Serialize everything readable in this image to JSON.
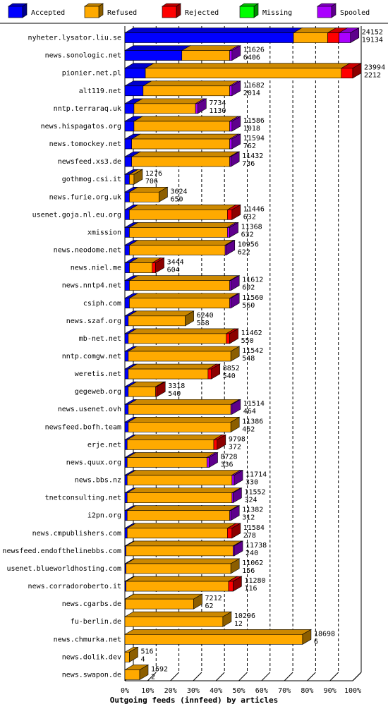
{
  "chart_data": {
    "type": "bar",
    "orientation": "horizontal",
    "stacked": true,
    "title": "",
    "xlabel": "Outgoing feeds (innfeed) by articles",
    "ylabel": "",
    "xlim": [
      0,
      100
    ],
    "x_unit": "%",
    "x_ticks": [
      "0%",
      "10%",
      "20%",
      "30%",
      "40%",
      "50%",
      "60%",
      "70%",
      "80%",
      "90%",
      "100%"
    ],
    "grid": true,
    "legend_position": "top",
    "legend": [
      {
        "name": "Accepted",
        "color": "#0000ff"
      },
      {
        "name": "Refused",
        "color": "#ffaa00"
      },
      {
        "name": "Rejected",
        "color": "#ff0000"
      },
      {
        "name": "Missing",
        "color": "#00ff00"
      },
      {
        "name": "Spooled",
        "color": "#aa00ff"
      }
    ],
    "categories": [
      {
        "host": "nyheter.lysator.liu.se",
        "offered": 24152,
        "refused": 19134,
        "segments": [
          74,
          15,
          5,
          0,
          5
        ]
      },
      {
        "host": "news.sonologic.net",
        "offered": 11626,
        "refused": 6406,
        "segments": [
          25,
          21,
          0,
          0,
          1
        ]
      },
      {
        "host": "pionier.net.pl",
        "offered": 23994,
        "refused": 2212,
        "segments": [
          9,
          86,
          5,
          0,
          0
        ]
      },
      {
        "host": "alt119.net",
        "offered": 11682,
        "refused": 2014,
        "segments": [
          8,
          38,
          0,
          0,
          1
        ]
      },
      {
        "host": "nntp.terraraq.uk",
        "offered": 7734,
        "refused": 1130,
        "segments": [
          4,
          27,
          0,
          0,
          1
        ]
      },
      {
        "host": "news.hispagatos.org",
        "offered": 11586,
        "refused": 1018,
        "segments": [
          4,
          42,
          0,
          0,
          1
        ]
      },
      {
        "host": "news.tomockey.net",
        "offered": 11594,
        "refused": 762,
        "segments": [
          3,
          43,
          0,
          0,
          1
        ]
      },
      {
        "host": "newsfeed.xs3.de",
        "offered": 11432,
        "refused": 736,
        "segments": [
          3,
          43,
          0,
          0,
          0.5
        ]
      },
      {
        "host": "gothmog.csi.it",
        "offered": 1276,
        "refused": 706,
        "segments": [
          2,
          2,
          0,
          0,
          0
        ]
      },
      {
        "host": "news.furie.org.uk",
        "offered": 3624,
        "refused": 650,
        "segments": [
          2,
          13,
          0,
          0,
          0
        ]
      },
      {
        "host": "usenet.goja.nl.eu.org",
        "offered": 11446,
        "refused": 632,
        "segments": [
          2,
          43,
          2,
          0,
          0
        ]
      },
      {
        "host": "xmission",
        "offered": 11368,
        "refused": 632,
        "segments": [
          2,
          43,
          0,
          0,
          1
        ]
      },
      {
        "host": "news.neodome.net",
        "offered": 10956,
        "refused": 622,
        "segments": [
          2,
          42,
          0,
          0,
          0.5
        ]
      },
      {
        "host": "news.niel.me",
        "offered": 3444,
        "refused": 604,
        "segments": [
          2,
          10,
          1.5,
          0,
          0
        ]
      },
      {
        "host": "news.nntp4.net",
        "offered": 11612,
        "refused": 602,
        "segments": [
          2,
          44,
          0,
          0,
          0.5
        ]
      },
      {
        "host": "csiph.com",
        "offered": 11560,
        "refused": 560,
        "segments": [
          2,
          44,
          0,
          0,
          0.5
        ]
      },
      {
        "host": "news.szaf.org",
        "offered": 6240,
        "refused": 558,
        "segments": [
          1.5,
          25,
          0,
          0,
          0
        ]
      },
      {
        "host": "mb-net.net",
        "offered": 11462,
        "refused": 550,
        "segments": [
          1.5,
          43,
          1.5,
          0,
          0
        ]
      },
      {
        "host": "nntp.comgw.net",
        "offered": 11542,
        "refused": 548,
        "segments": [
          1.5,
          45,
          0,
          0,
          0
        ]
      },
      {
        "host": "weretis.net",
        "offered": 8852,
        "refused": 540,
        "segments": [
          1.5,
          35,
          1.5,
          0,
          0
        ]
      },
      {
        "host": "gegeweb.org",
        "offered": 3318,
        "refused": 540,
        "segments": [
          1.5,
          12,
          0.5,
          0,
          0
        ]
      },
      {
        "host": "news.usenet.ovh",
        "offered": 11514,
        "refused": 464,
        "segments": [
          1.5,
          45,
          0,
          0,
          0.5
        ]
      },
      {
        "host": "newsfeed.bofh.team",
        "offered": 11386,
        "refused": 462,
        "segments": [
          1.5,
          45,
          0,
          0,
          0
        ]
      },
      {
        "host": "erje.net",
        "offered": 9798,
        "refused": 372,
        "segments": [
          1,
          38,
          1.5,
          0,
          0
        ]
      },
      {
        "host": "news.quux.org",
        "offered": 8728,
        "refused": 336,
        "segments": [
          1,
          35,
          0,
          0,
          1
        ]
      },
      {
        "host": "news.bbs.nz",
        "offered": 11714,
        "refused": 330,
        "segments": [
          1,
          46,
          0,
          0,
          1
        ]
      },
      {
        "host": "tnetconsulting.net",
        "offered": 11552,
        "refused": 324,
        "segments": [
          1,
          46,
          0,
          0,
          0.5
        ]
      },
      {
        "host": "i2pn.org",
        "offered": 11382,
        "refused": 312,
        "segments": [
          1,
          45,
          0,
          0,
          0.5
        ]
      },
      {
        "host": "news.cmpublishers.com",
        "offered": 11584,
        "refused": 278,
        "segments": [
          1,
          44,
          2,
          0,
          0
        ]
      },
      {
        "host": "newsfeed.endofthelinebbs.com",
        "offered": 11738,
        "refused": 240,
        "segments": [
          0.5,
          47,
          0,
          0,
          0.5
        ]
      },
      {
        "host": "usenet.blueworldhosting.com",
        "offered": 11062,
        "refused": 156,
        "segments": [
          0.5,
          46,
          0,
          0,
          0
        ]
      },
      {
        "host": "news.corradoroberto.it",
        "offered": 11280,
        "refused": 116,
        "segments": [
          0.5,
          45,
          2,
          0,
          0
        ]
      },
      {
        "host": "news.cgarbs.de",
        "offered": 7212,
        "refused": 62,
        "segments": [
          0.2,
          30,
          0,
          0,
          0
        ]
      },
      {
        "host": "fu-berlin.de",
        "offered": 10296,
        "refused": 12,
        "segments": [
          0,
          43,
          0,
          0,
          0
        ]
      },
      {
        "host": "news.chmurka.net",
        "offered": 18698,
        "refused": 6,
        "segments": [
          0,
          78,
          0,
          0,
          0
        ]
      },
      {
        "host": "news.dolik.dev",
        "offered": 516,
        "refused": 4,
        "segments": [
          0,
          2,
          0,
          0,
          0
        ]
      },
      {
        "host": "news.swapon.de",
        "offered": 1592,
        "refused": 2,
        "segments": [
          0,
          6.5,
          0,
          0,
          0
        ]
      }
    ]
  }
}
